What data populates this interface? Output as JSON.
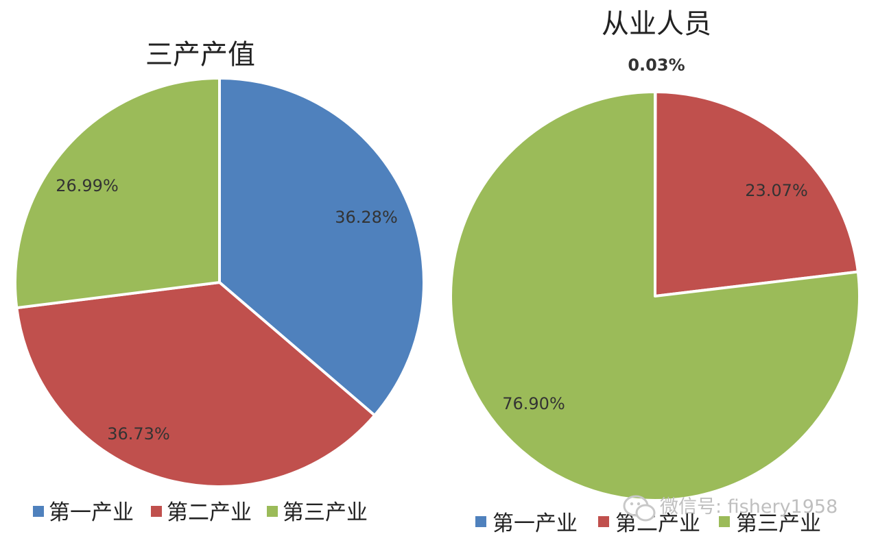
{
  "colors": {
    "blue": "#4F81BD",
    "red": "#C0504D",
    "green": "#9BBB59"
  },
  "chart_data": [
    {
      "type": "pie",
      "title": "三产产值",
      "categories": [
        "第一产业",
        "第二产业",
        "第三产业"
      ],
      "values": [
        36.28,
        36.73,
        26.99
      ],
      "labels": [
        "36.28%",
        "36.73%",
        "26.99%"
      ],
      "legend": "bottom"
    },
    {
      "type": "pie",
      "title": "从业人员",
      "categories": [
        "第一产业",
        "第二产业",
        "第三产业"
      ],
      "values": [
        0.03,
        23.07,
        76.9
      ],
      "labels": [
        "0.03%",
        "23.07%",
        "76.90%"
      ],
      "legend": "bottom"
    }
  ],
  "watermark": {
    "text": "微信号: fishery1958",
    "icon": "wechat-icon"
  }
}
